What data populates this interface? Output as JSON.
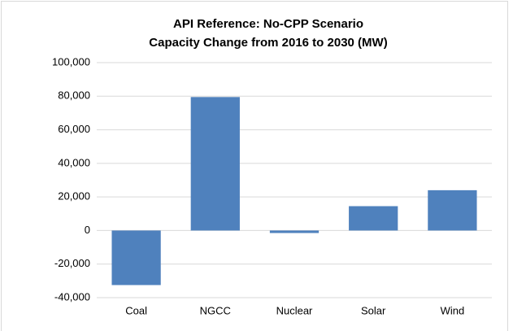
{
  "chart_data": {
    "type": "bar",
    "title": [
      "API Reference: No-CPP Scenario",
      "Capacity Change from 2016 to 2030 (MW)"
    ],
    "categories": [
      "Coal",
      "NGCC",
      "Nuclear",
      "Solar",
      "Wind"
    ],
    "values": [
      -32500,
      79500,
      -1500,
      14500,
      24000
    ],
    "color": "#4f81bd",
    "ylim": [
      -40000,
      100000
    ],
    "yticks": [
      {
        "value": -40000,
        "label": "-40,000"
      },
      {
        "value": -20000,
        "label": "-20,000"
      },
      0,
      {
        "value": 20000,
        "label": "20,000"
      },
      {
        "value": 40000,
        "label": "40,000"
      },
      {
        "value": 60000,
        "label": "60,000"
      },
      {
        "value": 80000,
        "label": "80,000"
      },
      {
        "value": 100000,
        "label": "100,000"
      }
    ],
    "grid": true
  }
}
